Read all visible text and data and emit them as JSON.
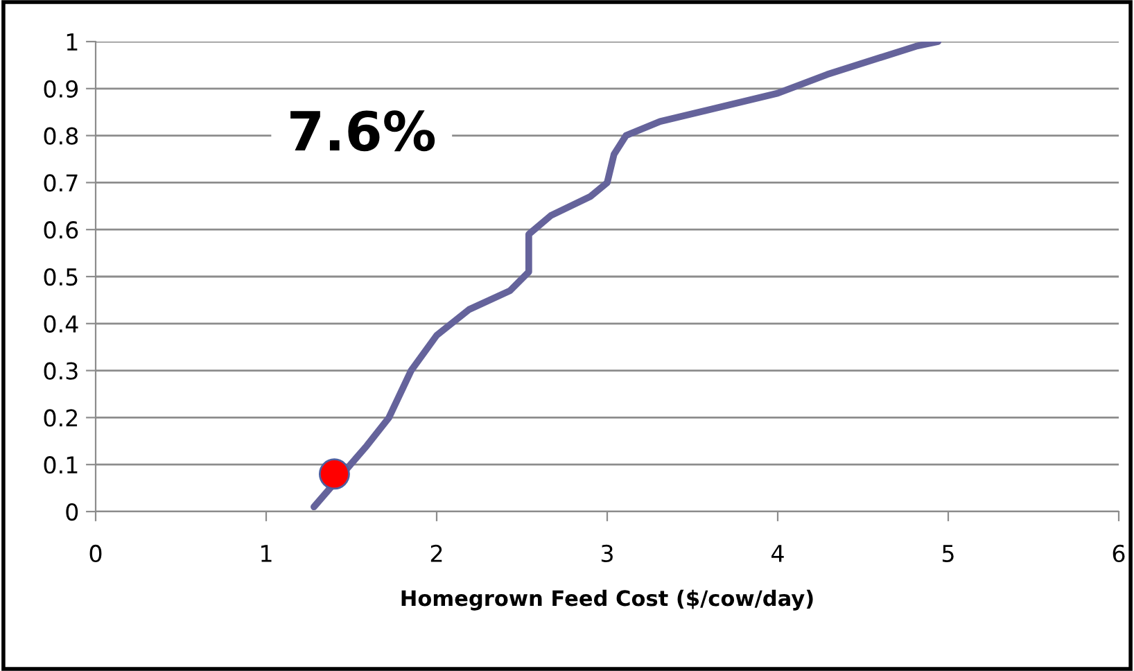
{
  "chart_data": {
    "type": "line",
    "xlabel": "Homegrown Feed Cost ($/cow/day)",
    "series": [
      {
        "marker": "none",
        "color": "#65639b",
        "x": [
          1.28,
          1.59,
          1.72,
          1.85,
          2.0,
          2.19,
          2.43,
          2.54,
          2.54,
          2.67,
          2.9,
          3.0,
          3.04,
          3.11,
          3.31,
          4.0,
          4.29,
          4.81,
          4.94
        ],
        "values": [
          0.01,
          0.14,
          0.2,
          0.3,
          0.375,
          0.43,
          0.47,
          0.51,
          0.59,
          0.63,
          0.67,
          0.7,
          0.76,
          0.8,
          0.83,
          0.89,
          0.93,
          0.99,
          1.0
        ]
      },
      {
        "type": "scatter",
        "marker": "circle",
        "color": "#ff0000",
        "x": [
          1.4
        ],
        "values": [
          0.08
        ]
      }
    ],
    "annotations": [
      "7.6%"
    ],
    "xlim": [
      0,
      6
    ],
    "xticks": [
      0,
      1,
      2,
      3,
      4,
      5,
      6
    ],
    "ylim": [
      0,
      1
    ],
    "yticks": [
      0,
      {
        "value": 0.1,
        "label": "0.1"
      },
      {
        "value": 0.2,
        "label": "0.2"
      },
      {
        "value": 0.3,
        "label": "0.3"
      },
      {
        "value": 0.4,
        "label": "0.4"
      },
      {
        "value": 0.5,
        "label": "0.5"
      },
      {
        "value": 0.6,
        "label": "0.6"
      },
      {
        "value": 0.7,
        "label": "0.7"
      },
      {
        "value": 0.8,
        "label": "0.8"
      },
      {
        "value": 0.9,
        "label": "0.9"
      },
      1
    ],
    "grid": "y",
    "legend": false,
    "line_style": "solid"
  }
}
